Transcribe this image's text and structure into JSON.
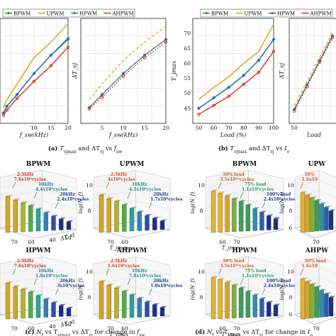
{
  "colors": {
    "BPWM": "#2a9d2a",
    "UPWM": "#d4a21a",
    "HPWM": "#2e6fb0",
    "AHPWM": "#e0302a"
  },
  "legend_labels": [
    "BPWM",
    "UPWM",
    "HPWM",
    "AHPWM"
  ],
  "captions": {
    "a": "(a) T_vjmax and ΔT_vj vs f_sw",
    "b": "(b) T_vjmax and ΔT_vj vs I_o",
    "c": "(c) N_f vs T_vjmax vs ΔT_vj for change in f_sw",
    "d": "(d) N_f vs T_vjmax vs ΔT_vj for change in I_o"
  },
  "chart_data": [
    {
      "id": "a-left",
      "type": "line",
      "x": [
        1,
        2,
        5,
        10,
        15,
        20
      ],
      "series": [
        {
          "name": "BPWM",
          "values": [
            4,
            6.5,
            11,
            19,
            26,
            32.5
          ]
        },
        {
          "name": "UPWM",
          "values": [
            6,
            9,
            15,
            25,
            31,
            38
          ]
        },
        {
          "name": "HPWM",
          "values": [
            4,
            6.5,
            11,
            19,
            26,
            32
          ]
        },
        {
          "name": "AHPWM",
          "values": [
            3,
            5,
            9.5,
            16,
            22,
            29
          ]
        }
      ],
      "xlim": [
        0,
        20
      ],
      "ylim": [
        0,
        40
      ],
      "xticks": [
        "10",
        "15",
        "20"
      ],
      "xlabel": "f_sw(kHz)"
    },
    {
      "id": "a-right",
      "type": "line",
      "x": [
        2,
        5,
        10,
        15,
        20
      ],
      "series": [
        {
          "name": "BPWM",
          "values": [
            6,
            11,
            19,
            26,
            32
          ]
        },
        {
          "name": "UPWM",
          "values": [
            9,
            15,
            24,
            31,
            37
          ]
        },
        {
          "name": "HPWM",
          "values": [
            6,
            11,
            19,
            26,
            32
          ]
        },
        {
          "name": "AHPWM",
          "values": [
            5.5,
            10,
            18,
            25,
            31
          ]
        }
      ],
      "xlim": [
        0,
        20
      ],
      "ylim": [
        0,
        40
      ],
      "xticks": [
        "5",
        "10",
        "15",
        "20"
      ],
      "xlabel": "f_sw(kHz)",
      "ylabel": "ΔT_vj"
    },
    {
      "id": "b-left",
      "type": "line",
      "x": [
        50,
        60,
        70,
        80,
        90,
        100
      ],
      "series": [
        {
          "name": "BPWM",
          "values": [
            45,
            48.5,
            52,
            56,
            61,
            68
          ]
        },
        {
          "name": "UPWM",
          "values": [
            48,
            52,
            55.5,
            60,
            64,
            73
          ]
        },
        {
          "name": "HPWM",
          "values": [
            45,
            48.5,
            52,
            56,
            61,
            68
          ]
        },
        {
          "name": "AHPWM",
          "values": [
            43,
            46,
            49,
            53,
            57,
            64
          ]
        }
      ],
      "xlim": [
        46,
        100
      ],
      "ylim": [
        40,
        75
      ],
      "xticks": [
        "50",
        "60",
        "70",
        "80",
        "90",
        "100"
      ],
      "yticks": [
        "45",
        "50",
        "55",
        "60",
        "65",
        "70"
      ],
      "xlabel": "Load (%)",
      "ylabel": "T_jmax"
    },
    {
      "id": "b-right",
      "type": "line",
      "x": [
        50,
        60,
        70,
        80
      ],
      "series": [
        {
          "name": "BPWM",
          "values": [
            4,
            11,
            18,
            25
          ]
        },
        {
          "name": "UPWM",
          "values": [
            5,
            12,
            19,
            26
          ]
        },
        {
          "name": "HPWM",
          "values": [
            4,
            11,
            18,
            25
          ]
        },
        {
          "name": "AHPWM",
          "values": [
            3.5,
            10.5,
            17.5,
            24.5
          ]
        }
      ],
      "xlim": [
        46,
        85
      ],
      "ylim": [
        0,
        30
      ],
      "xticks": [
        "50"
      ],
      "xlabel": "Load",
      "ylabel": "ΔT_vj"
    },
    {
      "id": "c-BPWM",
      "type": "bar",
      "title": "BPWM",
      "values": [
        9.6,
        9.1,
        8.7,
        8.3,
        7.8,
        7.3,
        6.8,
        6.4,
        6.0
      ],
      "annotations": [
        "2.5kHz",
        "7.6x10⁹cycles",
        "10kHz",
        "4.4x10⁹cycles",
        "20kHz",
        "2.4x10⁹cycles"
      ],
      "tick_labels": [
        "70",
        "60",
        "40",
        "50",
        "ΔT_vj"
      ]
    },
    {
      "id": "c-UPWM",
      "type": "bar",
      "title": "UPWM",
      "values": [
        9.8,
        9.3,
        8.9,
        8.4,
        7.9,
        7.4,
        6.9,
        6.5,
        6.1
      ],
      "annotations": [
        "2.5kHz",
        "4x10⁸cycles",
        "10kHz",
        "4.3x10⁸cycles",
        "20kHz",
        "1.7x10⁸cycles"
      ],
      "tick_labels": [
        "10",
        "8",
        "70",
        "60",
        "T_jmax",
        "log(N_f)"
      ]
    },
    {
      "id": "c-HPWM",
      "type": "bar",
      "title": "HPWM",
      "values": [
        9.6,
        9.1,
        8.7,
        8.3,
        7.8,
        7.3,
        6.8,
        6.4,
        6.0
      ],
      "annotations": [
        "2.5kHz",
        "7.6x10⁹cycles",
        "10kHz",
        "1.9x10⁹cycles",
        "20kHz",
        "3x10⁹cycles"
      ],
      "tick_labels": [
        "70",
        "60",
        "40",
        "50",
        "ΔT_vj"
      ]
    },
    {
      "id": "c-AHPWM",
      "type": "bar",
      "title": "AHPWM",
      "values": [
        9.8,
        9.3,
        8.9,
        8.4,
        7.9,
        7.4,
        6.9,
        6.5,
        6.1
      ],
      "annotations": [
        "2.5kHz",
        "1.6x10⁹cycles",
        "10kHz",
        "7.8x10⁸cycles",
        "20kHz",
        "1.8x10⁸cycles"
      ],
      "tick_labels": [
        "10",
        "8",
        "70",
        "60",
        "T_jmax",
        "log(N_f)"
      ]
    },
    {
      "id": "d-BPWM",
      "type": "bar",
      "title": "BPWM",
      "values": [
        10.3,
        10.0,
        9.6,
        9.2,
        8.8,
        8.3,
        7.8,
        7.3,
        6.8,
        6.4
      ],
      "annotations": [
        "50% load",
        "3.5x10¹⁰cycles",
        "75% load",
        "1.1x10⁹cycles",
        "100% load",
        "2.4x10⁷cycles"
      ],
      "tick_labels": [
        "10",
        "8",
        "60",
        "70",
        "T_jmax",
        "log(N_f)"
      ]
    },
    {
      "id": "d-UPWM",
      "type": "bar",
      "title": "UPW",
      "values": [
        10.1,
        9.7,
        9.3,
        8.9,
        8.4,
        7.9,
        7.4
      ],
      "annotations": [
        "50%",
        "1.6x10"
      ],
      "tick_labels": [
        "10",
        "8",
        "6",
        "70",
        "log(N_f)"
      ]
    },
    {
      "id": "d-HPWM",
      "type": "bar",
      "title": "HPWM",
      "values": [
        10.3,
        10.0,
        9.6,
        9.2,
        8.8,
        8.3,
        7.8,
        7.3,
        6.8,
        6.4
      ],
      "annotations": [
        "50% load",
        "3.5x10¹⁰cycles",
        "75% load",
        "1.1x10⁹cycles",
        "100% load",
        "2.4x10⁷cycles"
      ],
      "tick_labels": [
        "10",
        "8",
        "60",
        "70",
        "T_jmax",
        "log(N_f)"
      ]
    },
    {
      "id": "d-AHPWM",
      "type": "bar",
      "title": "AHPW",
      "values": [
        10.1,
        9.7,
        9.3,
        8.9,
        8.4,
        7.9,
        7.4
      ],
      "annotations": [
        "50% load",
        "1.6x10"
      ],
      "tick_labels": [
        "10",
        "8",
        "6",
        "70",
        "log(N_f)"
      ]
    }
  ]
}
